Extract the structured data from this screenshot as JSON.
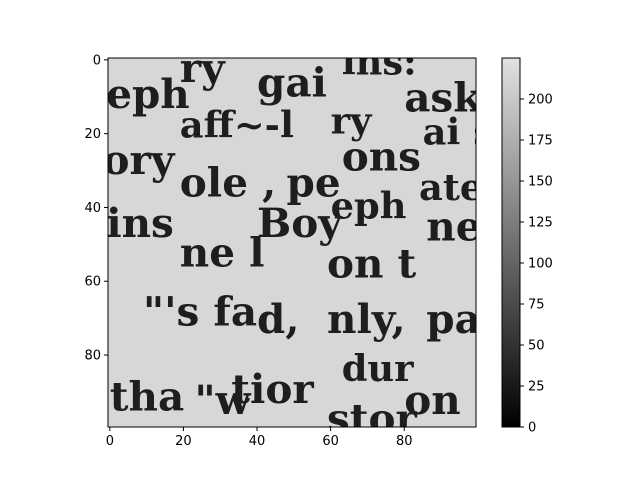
{
  "chart_data": {
    "type": "heatmap",
    "title": "",
    "xlabel": "",
    "ylabel": "",
    "colormap": "gray",
    "image_size": [
      100,
      100
    ],
    "xlim": [
      -0.5,
      99.5
    ],
    "ylim": [
      99.5,
      -0.5
    ],
    "x_ticks": [
      0,
      20,
      40,
      60,
      80
    ],
    "x_tick_labels": [
      "0",
      "20",
      "40",
      "60",
      "80"
    ],
    "y_ticks": [
      0,
      20,
      40,
      60,
      80
    ],
    "y_tick_labels": [
      "0",
      "20",
      "40",
      "60",
      "80"
    ],
    "colorbar": {
      "range": [
        0,
        225
      ],
      "ticks": [
        0,
        25,
        50,
        75,
        100,
        125,
        150,
        175,
        200
      ],
      "tick_labels": [
        "0",
        "25",
        "50",
        "75",
        "100",
        "125",
        "150",
        "175",
        "200"
      ]
    },
    "background_value": 215,
    "ink_value": 30,
    "text_fragments": [
      {
        "text": "ry",
        "x": 19,
        "y": 6,
        "size": 11
      },
      {
        "text": "gai",
        "x": 40,
        "y": 10,
        "size": 11
      },
      {
        "text": "ins:",
        "x": 63,
        "y": 4,
        "size": 10
      },
      {
        "text": "eph",
        "x": -1,
        "y": 13,
        "size": 11
      },
      {
        "text": "ask",
        "x": 80,
        "y": 14,
        "size": 11
      },
      {
        "text": "aff~-l",
        "x": 19,
        "y": 21,
        "size": 10
      },
      {
        "text": "ry",
        "x": 60,
        "y": 20,
        "size": 10
      },
      {
        "text": "ai s",
        "x": 85,
        "y": 23,
        "size": 10
      },
      {
        "text": "ory",
        "x": -2,
        "y": 31,
        "size": 11
      },
      {
        "text": "ons",
        "x": 63,
        "y": 30,
        "size": 11
      },
      {
        "text": "ole ,",
        "x": 19,
        "y": 37,
        "size": 11
      },
      {
        "text": "pe",
        "x": 48,
        "y": 37,
        "size": 11
      },
      {
        "text": "ates",
        "x": 84,
        "y": 38,
        "size": 10
      },
      {
        "text": "ins",
        "x": -1,
        "y": 48,
        "size": 11
      },
      {
        "text": "Boy",
        "x": 40,
        "y": 48,
        "size": 11
      },
      {
        "text": "eph",
        "x": 60,
        "y": 43,
        "size": 10
      },
      {
        "text": "ner",
        "x": 86,
        "y": 49,
        "size": 11
      },
      {
        "text": "ne l",
        "x": 19,
        "y": 56,
        "size": 11
      },
      {
        "text": "on t",
        "x": 59,
        "y": 59,
        "size": 11
      },
      {
        "text": "\"'s fa",
        "x": 9,
        "y": 72,
        "size": 11
      },
      {
        "text": "d,",
        "x": 40,
        "y": 74,
        "size": 11
      },
      {
        "text": "nly,",
        "x": 59,
        "y": 74,
        "size": 11
      },
      {
        "text": "pa",
        "x": 86,
        "y": 74,
        "size": 11
      },
      {
        "text": "dur",
        "x": 63,
        "y": 87,
        "size": 10
      },
      {
        "text": "tha",
        "x": 0,
        "y": 95,
        "size": 11
      },
      {
        "text": "\"w",
        "x": 23,
        "y": 96,
        "size": 11
      },
      {
        "text": "tior",
        "x": 33,
        "y": 93,
        "size": 11
      },
      {
        "text": "stor",
        "x": 59,
        "y": 101,
        "size": 11
      },
      {
        "text": "on",
        "x": 80,
        "y": 96,
        "size": 11
      }
    ]
  }
}
